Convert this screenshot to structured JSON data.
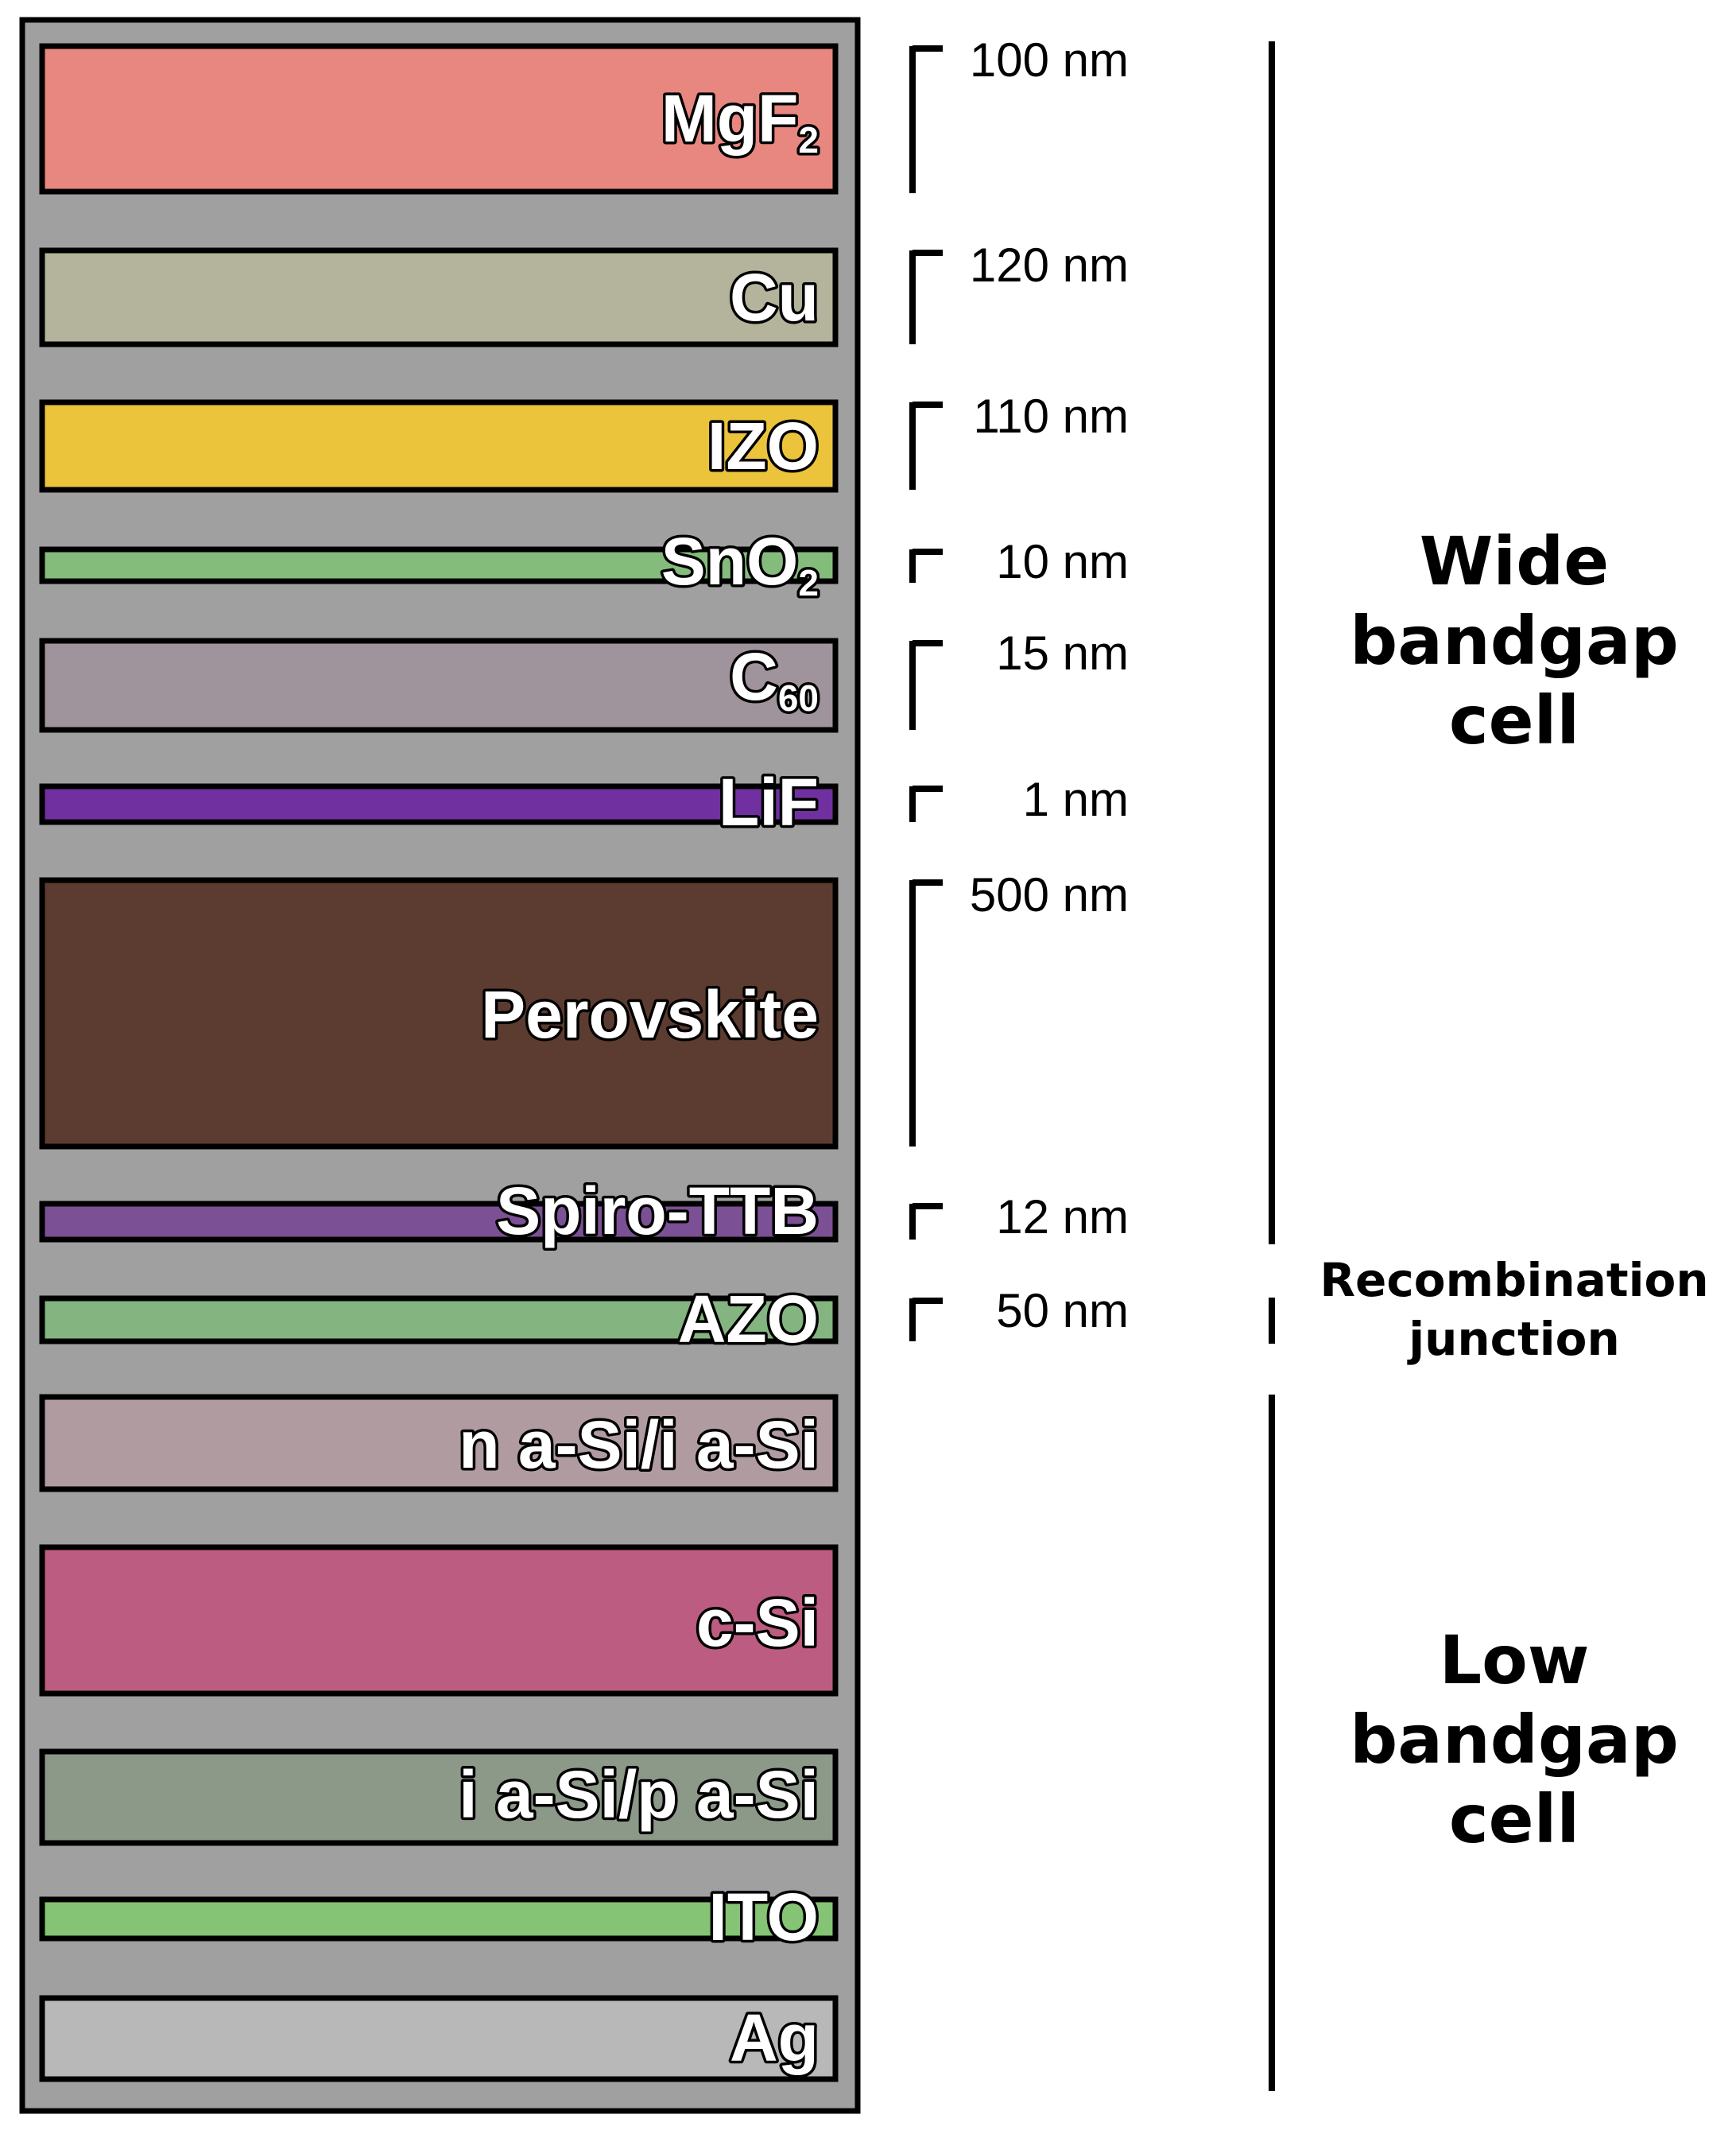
{
  "layers": [
    {
      "name": "MgF",
      "sub": "2",
      "thickness": "100 nm",
      "color": "#e88680"
    },
    {
      "name": "Cu",
      "sub": "",
      "thickness": "120 nm",
      "color": "#b4b49c"
    },
    {
      "name": "IZO",
      "sub": "",
      "thickness": "110 nm",
      "color": "#ecc43c"
    },
    {
      "name": "SnO",
      "sub": "2",
      "thickness": "10 nm",
      "color": "#84bc7c"
    },
    {
      "name": "C",
      "sub": "60",
      "thickness": "15 nm",
      "color": "#a0949c"
    },
    {
      "name": "LiF",
      "sub": "",
      "thickness": "1 nm",
      "color": "#7030a0"
    },
    {
      "name": "Perovskite",
      "sub": "",
      "thickness": "500 nm",
      "color": "#5c3c30"
    },
    {
      "name": "Spiro-TTB",
      "sub": "",
      "thickness": "12 nm",
      "color": "#7c5094"
    },
    {
      "name": "AZO",
      "sub": "",
      "thickness": "50 nm",
      "color": "#84b480"
    },
    {
      "name": "n a-Si/i a-Si",
      "sub": "",
      "thickness": "",
      "color": "#b09ca0"
    },
    {
      "name": "c-Si",
      "sub": "",
      "thickness": "",
      "color": "#bc5c80"
    },
    {
      "name": "i a-Si/p a-Si",
      "sub": "",
      "thickness": "",
      "color": "#8c9888"
    },
    {
      "name": "ITO",
      "sub": "",
      "thickness": "",
      "color": "#84c474"
    },
    {
      "name": "Ag",
      "sub": "",
      "thickness": "",
      "color": "#b8b8b8"
    }
  ],
  "sections": [
    {
      "lines": [
        "Wide",
        "bandgap",
        "cell"
      ]
    },
    {
      "lines": [
        "Recombination",
        "junction"
      ]
    },
    {
      "lines": [
        "Low",
        "bandgap",
        "cell"
      ]
    }
  ],
  "colors": {
    "stack_background": "#a0a0a0",
    "outline": "#000000",
    "label_fill": "#ffffff"
  }
}
